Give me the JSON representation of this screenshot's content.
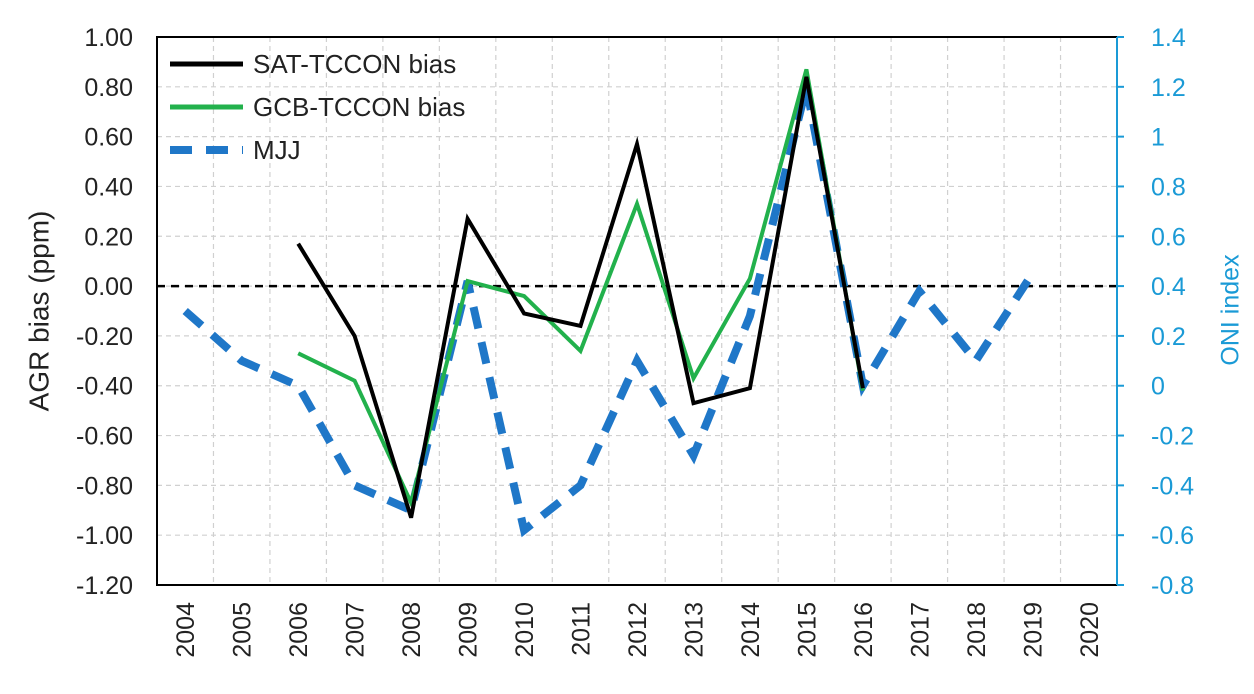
{
  "chart_data": {
    "type": "line",
    "x": [
      "2004",
      "2005",
      "2006",
      "2007",
      "2008",
      "2009",
      "2010",
      "2011",
      "2012",
      "2013",
      "2014",
      "2015",
      "2016",
      "2017",
      "2018",
      "2019",
      "2020"
    ],
    "y_left": {
      "label": "AGR bias (ppm)",
      "lim": [
        -1.2,
        1.0
      ],
      "ticks": [
        "1.00",
        "0.80",
        "0.60",
        "0.40",
        "0.20",
        "0.00",
        "-0.20",
        "-0.40",
        "-0.60",
        "-0.80",
        "-1.00",
        "-1.20"
      ]
    },
    "y_right": {
      "label": "ONI index",
      "lim": [
        -0.8,
        1.4
      ],
      "ticks": [
        "1.4",
        "1.2",
        "1",
        "0.8",
        "0.6",
        "0.4",
        "0.2",
        "0",
        "-0.2",
        "-0.4",
        "-0.6",
        "-0.8"
      ]
    },
    "grid": true,
    "zero_line": true,
    "legend_position": "top-left",
    "series": [
      {
        "name": "SAT-TCCON bias",
        "axis": "left",
        "color": "#000000",
        "style": "solid",
        "values": [
          null,
          null,
          0.17,
          -0.2,
          -0.93,
          0.27,
          -0.11,
          -0.16,
          0.57,
          -0.47,
          -0.41,
          0.84,
          -0.41,
          null,
          null,
          null,
          null
        ]
      },
      {
        "name": "GCB-TCCON bias",
        "axis": "left",
        "color": "#22b14c",
        "style": "solid",
        "values": [
          null,
          null,
          -0.27,
          -0.38,
          -0.87,
          0.02,
          -0.04,
          -0.26,
          0.33,
          -0.37,
          0.03,
          0.87,
          -0.42,
          null,
          null,
          null,
          null
        ]
      },
      {
        "name": "MJJ",
        "axis": "right",
        "color": "#1f77c8",
        "style": "dashed",
        "values": [
          0.3,
          0.1,
          0.0,
          -0.4,
          -0.5,
          0.42,
          -0.58,
          -0.4,
          0.1,
          -0.28,
          0.28,
          1.2,
          0.0,
          0.38,
          0.1,
          0.45,
          null
        ]
      }
    ]
  }
}
